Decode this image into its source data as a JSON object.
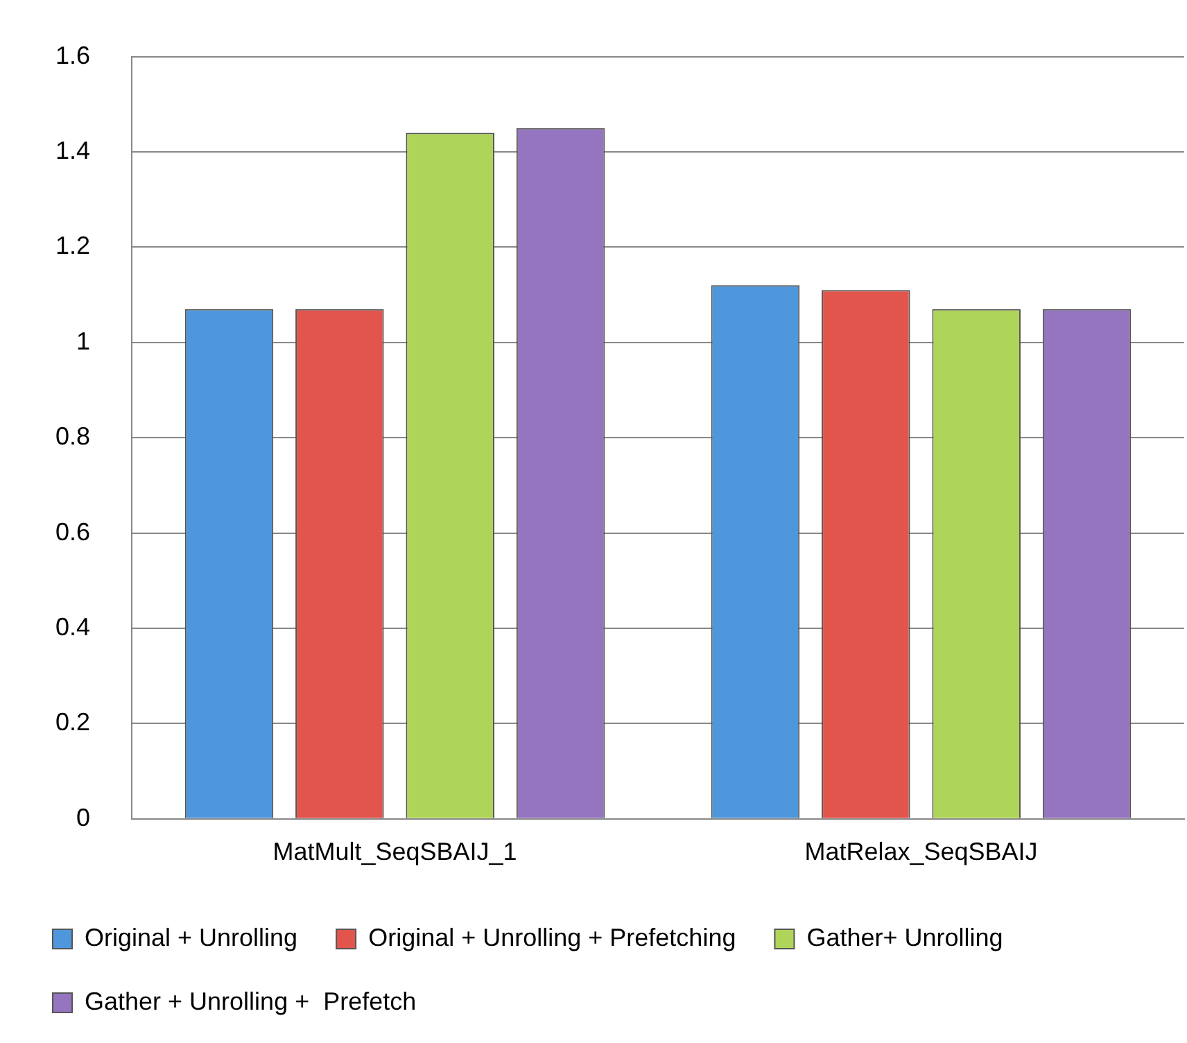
{
  "chart_data": {
    "type": "bar",
    "categories": [
      "MatMult_SeqSBAIJ_1",
      "MatRelax_SeqSBAIJ"
    ],
    "series": [
      {
        "name": "Original + Unrolling",
        "color": "#4f97dc",
        "values": [
          1.07,
          1.12
        ]
      },
      {
        "name": "Original + Unrolling + Prefetching",
        "color": "#e2554d",
        "values": [
          1.07,
          1.11
        ]
      },
      {
        "name": "Gather+ Unrolling",
        "color": "#afd45a",
        "values": [
          1.44,
          1.07
        ]
      },
      {
        "name": "Gather + Unrolling +  Prefetch",
        "color": "#9575c0",
        "values": [
          1.45,
          1.07
        ]
      }
    ],
    "ylim": [
      0,
      1.6
    ],
    "yticks": [
      0,
      0.2,
      0.4,
      0.6,
      0.8,
      1,
      1.2,
      1.4,
      1.6
    ],
    "grid": "y",
    "legend": "bottom"
  }
}
